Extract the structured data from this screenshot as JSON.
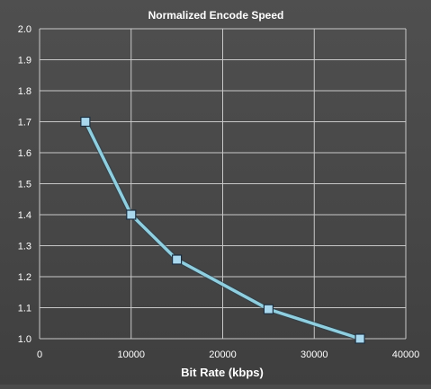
{
  "chart_data": {
    "type": "line",
    "title": "Normalized Encode Speed",
    "xlabel": "Bit Rate (kbps)",
    "ylabel": "",
    "xlim": [
      0,
      40000
    ],
    "ylim": [
      1.0,
      2.0
    ],
    "x_ticks": [
      "0",
      "10000",
      "20000",
      "30000",
      "40000"
    ],
    "y_ticks": [
      "1.0",
      "1.1",
      "1.2",
      "1.3",
      "1.4",
      "1.5",
      "1.6",
      "1.7",
      "1.8",
      "1.9",
      "2.0"
    ],
    "grid": true,
    "legend": "none",
    "marker": "square",
    "series": [
      {
        "x": [
          5000,
          10000,
          15000,
          25000,
          35000
        ],
        "y": [
          1.7,
          1.4,
          1.255,
          1.095,
          1.0
        ]
      }
    ],
    "colors": {
      "line": "#8fcfe0",
      "marker_fill": "#a9d8ee",
      "marker_stroke": "#1c2f40",
      "grid": "#c8c8c8",
      "background": "#4a4a4a",
      "text": "#ffffff"
    }
  }
}
